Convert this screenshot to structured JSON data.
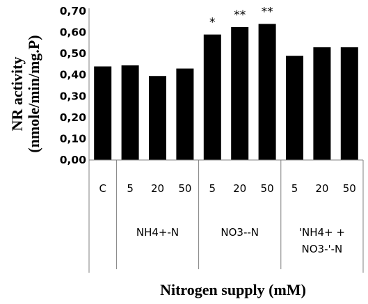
{
  "chart_data": {
    "type": "bar",
    "ylabel_line1": "NR activity",
    "ylabel_line2": "(nmole/min/mg.P)",
    "xlabel": "Nitrogen supply  (mM)",
    "ylim": [
      0,
      0.7
    ],
    "yticks": [
      "0,00",
      "0,10",
      "0,20",
      "0,30",
      "0,40",
      "0,50",
      "0,60",
      "0,70"
    ],
    "grid": false,
    "bar_color": "#000000",
    "categories": [
      "C",
      "5",
      "20",
      "50",
      "5",
      "20",
      "50",
      "5",
      "20",
      "50"
    ],
    "values": [
      0.44,
      0.445,
      0.395,
      0.43,
      0.59,
      0.625,
      0.64,
      0.49,
      0.53,
      0.53
    ],
    "annotations": [
      "",
      "",
      "",
      "",
      "*",
      "**",
      "**",
      "",
      "",
      ""
    ],
    "groups": [
      {
        "label_lines": [
          ""
        ],
        "start": 0,
        "end": 0
      },
      {
        "label_lines": [
          "NH4+-N"
        ],
        "start": 1,
        "end": 3
      },
      {
        "label_lines": [
          "NO3--N"
        ],
        "start": 4,
        "end": 6
      },
      {
        "label_lines": [
          "'NH4+ +",
          "NO3-'-N"
        ],
        "start": 7,
        "end": 9
      }
    ]
  }
}
